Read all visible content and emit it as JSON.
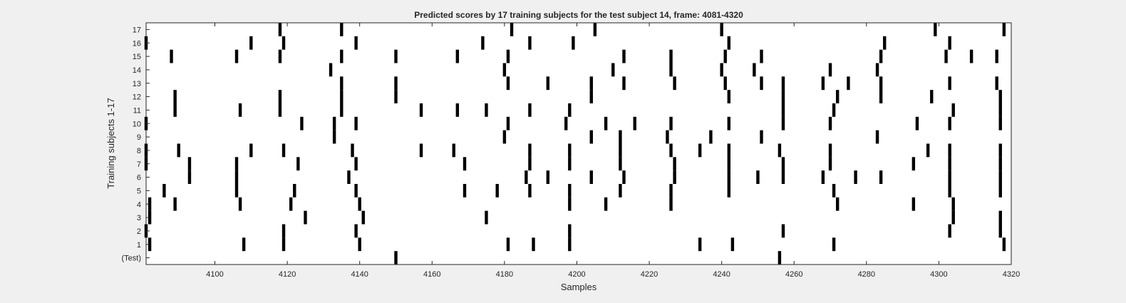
{
  "chart_data": {
    "type": "raster",
    "title": "Predicted scores by 17 training subjects for the test subject 14, frame: 4081-4320",
    "xlabel": "Samples",
    "ylabel": "Training subjects 1-17",
    "xlim": [
      4081,
      4320
    ],
    "x_ticks": [
      4100,
      4120,
      4140,
      4160,
      4180,
      4200,
      4220,
      4240,
      4260,
      4280,
      4300,
      4320
    ],
    "y_tick_labels": [
      "(Test)",
      "1",
      "2",
      "3",
      "4",
      "5",
      "6",
      "7",
      "8",
      "9",
      "10",
      "11",
      "12",
      "13",
      "14",
      "15",
      "16",
      "17"
    ],
    "grid": false,
    "rows": [
      {
        "label": "(Test)",
        "events": [
          4150,
          4256
        ]
      },
      {
        "label": "1",
        "events": [
          4082,
          4108,
          4119,
          4140,
          4181,
          4188,
          4198,
          4234,
          4243,
          4271,
          4318
        ]
      },
      {
        "label": "2",
        "events": [
          4081,
          4119,
          4139,
          4198,
          4257,
          4303,
          4317
        ]
      },
      {
        "label": "3",
        "events": [
          4082,
          4125,
          4141,
          4175,
          4304,
          4317
        ]
      },
      {
        "label": "4",
        "events": [
          4082,
          4089,
          4107,
          4121,
          4140,
          4198,
          4208,
          4226,
          4272,
          4293,
          4304
        ]
      },
      {
        "label": "5",
        "events": [
          4086,
          4106,
          4122,
          4139,
          4169,
          4178,
          4187,
          4198,
          4212,
          4226,
          4242,
          4271,
          4303,
          4317
        ]
      },
      {
        "label": "6",
        "events": [
          4093,
          4106,
          4137,
          4186,
          4192,
          4204,
          4213,
          4227,
          4242,
          4250,
          4257,
          4268,
          4277,
          4284,
          4303,
          4317
        ]
      },
      {
        "label": "7",
        "events": [
          4081,
          4093,
          4106,
          4123,
          4139,
          4169,
          4187,
          4198,
          4212,
          4227,
          4242,
          4257,
          4270,
          4293,
          4303,
          4317
        ]
      },
      {
        "label": "8",
        "events": [
          4081,
          4090,
          4110,
          4119,
          4138,
          4157,
          4166,
          4187,
          4198,
          4212,
          4226,
          4234,
          4242,
          4256,
          4270,
          4297,
          4303,
          4317
        ]
      },
      {
        "label": "9",
        "events": [
          4133,
          4180,
          4204,
          4212,
          4225,
          4237,
          4251,
          4283
        ]
      },
      {
        "label": "10",
        "events": [
          4081,
          4124,
          4133,
          4139,
          4181,
          4197,
          4208,
          4216,
          4226,
          4242,
          4257,
          4270,
          4294,
          4303,
          4317
        ]
      },
      {
        "label": "11",
        "events": [
          4089,
          4107,
          4118,
          4135,
          4157,
          4167,
          4175,
          4187,
          4198,
          4257,
          4271,
          4304,
          4317
        ]
      },
      {
        "label": "12",
        "events": [
          4089,
          4118,
          4135,
          4150,
          4204,
          4242,
          4257,
          4272,
          4284,
          4298,
          4317
        ]
      },
      {
        "label": "13",
        "events": [
          4135,
          4150,
          4181,
          4192,
          4204,
          4213,
          4227,
          4241,
          4251,
          4257,
          4268,
          4275,
          4284,
          4303,
          4316
        ]
      },
      {
        "label": "14",
        "events": [
          4132,
          4180,
          4210,
          4226,
          4240,
          4249,
          4270,
          4283
        ]
      },
      {
        "label": "15",
        "events": [
          4088,
          4106,
          4118,
          4135,
          4150,
          4167,
          4181,
          4213,
          4226,
          4241,
          4251,
          4284,
          4302,
          4309,
          4316
        ]
      },
      {
        "label": "16",
        "events": [
          4081,
          4110,
          4119,
          4139,
          4174,
          4187,
          4199,
          4242,
          4285,
          4303
        ]
      },
      {
        "label": "17",
        "events": [
          4118,
          4135,
          4182,
          4205,
          4240,
          4299,
          4318
        ]
      }
    ]
  }
}
